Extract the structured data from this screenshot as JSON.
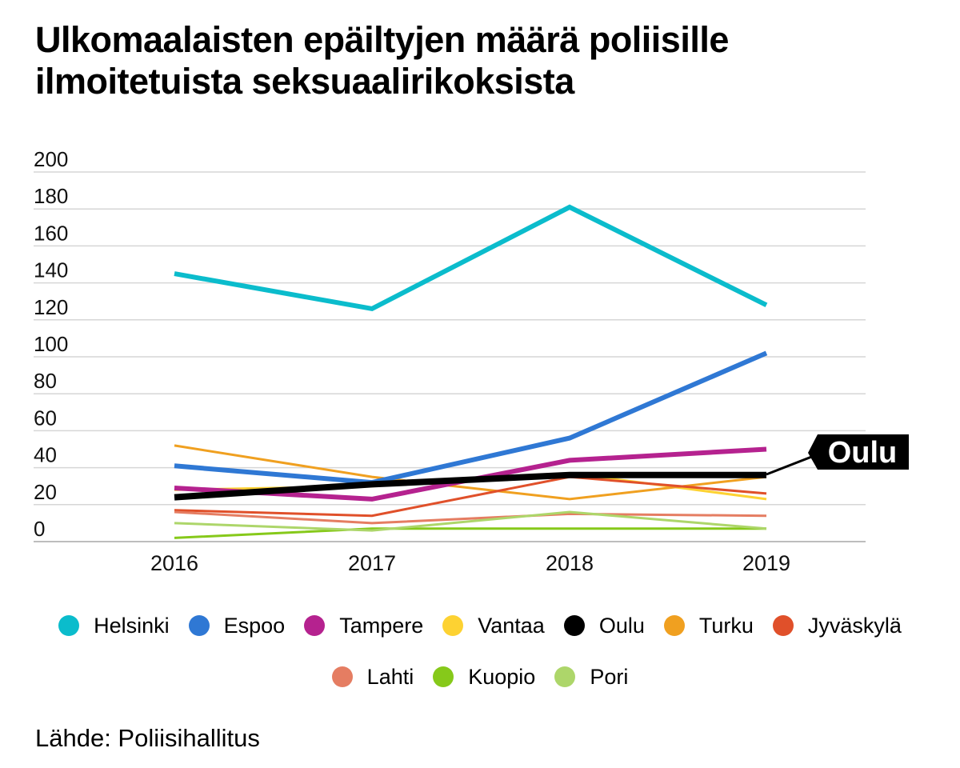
{
  "chart_data": {
    "type": "line",
    "title_lines": [
      "Ulkomaalaisten epäiltyjen määrä poliisille",
      "ilmoitetuista seksuaalirikoksista"
    ],
    "x": [
      "2016",
      "2017",
      "2018",
      "2019"
    ],
    "ylim": [
      0,
      200
    ],
    "yticks": [
      "200",
      "180",
      "160",
      "140",
      "120",
      "100",
      "80",
      "60",
      "40",
      "20",
      "0"
    ],
    "series": [
      {
        "name": "Helsinki",
        "color": "#0bbccc",
        "emphasis": true,
        "values": [
          145,
          126,
          181,
          128
        ]
      },
      {
        "name": "Espoo",
        "color": "#2f78d4",
        "emphasis": true,
        "values": [
          41,
          32,
          56,
          102
        ]
      },
      {
        "name": "Tampere",
        "color": "#b5228f",
        "emphasis": true,
        "values": [
          29,
          23,
          44,
          50
        ]
      },
      {
        "name": "Vantaa",
        "color": "#fdd232",
        "emphasis": false,
        "values": [
          28,
          30,
          37,
          23
        ]
      },
      {
        "name": "Oulu",
        "color": "#000000",
        "emphasis": true,
        "highlight": true,
        "values": [
          24,
          31,
          36,
          36
        ]
      },
      {
        "name": "Turku",
        "color": "#f0a020",
        "emphasis": false,
        "values": [
          52,
          35,
          23,
          35
        ]
      },
      {
        "name": "Jyväskylä",
        "color": "#e0502a",
        "emphasis": false,
        "values": [
          17,
          14,
          35,
          26
        ]
      },
      {
        "name": "Lahti",
        "color": "#e57d62",
        "emphasis": false,
        "values": [
          16,
          10,
          15,
          14
        ]
      },
      {
        "name": "Kuopio",
        "color": "#86c91a",
        "emphasis": false,
        "values": [
          2,
          7,
          7,
          7
        ]
      },
      {
        "name": "Pori",
        "color": "#add66a",
        "emphasis": false,
        "values": [
          10,
          6,
          16,
          7
        ]
      }
    ],
    "callout": "Oulu",
    "source": "Lähde: Poliisihallitus"
  }
}
